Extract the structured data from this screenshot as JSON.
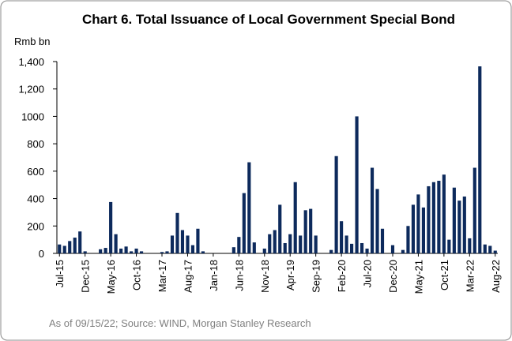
{
  "chart_data": {
    "type": "bar",
    "title": "Chart 6. Total Issuance of Local Government Special Bond",
    "y_label": "Rmb bn",
    "source": "As of 09/15/22; Source: WIND, Morgan Stanley Research",
    "color": "#0d2a5c",
    "categories": [
      "Jul-15",
      null,
      null,
      null,
      null,
      "Dec-15",
      null,
      null,
      null,
      null,
      "May-16",
      null,
      null,
      null,
      null,
      "Oct-16",
      null,
      null,
      null,
      null,
      "Mar-17",
      null,
      null,
      null,
      null,
      "Aug-17",
      null,
      null,
      null,
      null,
      "Jan-18",
      null,
      null,
      null,
      null,
      "Jun-18",
      null,
      null,
      null,
      null,
      "Nov-18",
      null,
      null,
      null,
      null,
      "Apr-19",
      null,
      null,
      null,
      null,
      "Sep-19",
      null,
      null,
      null,
      null,
      "Feb-20",
      null,
      null,
      null,
      null,
      "Jul-20",
      null,
      null,
      null,
      null,
      "Dec-20",
      null,
      null,
      null,
      null,
      "May-21",
      null,
      null,
      null,
      null,
      "Oct-21",
      null,
      null,
      null,
      null,
      "Mar-22",
      null,
      null,
      null,
      null,
      "Aug-22"
    ],
    "values": [
      65,
      55,
      90,
      115,
      160,
      15,
      0,
      0,
      30,
      40,
      375,
      140,
      35,
      50,
      15,
      35,
      15,
      0,
      0,
      0,
      10,
      15,
      130,
      295,
      170,
      130,
      60,
      180,
      15,
      0,
      0,
      0,
      0,
      0,
      45,
      120,
      440,
      665,
      80,
      0,
      35,
      140,
      170,
      355,
      75,
      140,
      520,
      130,
      315,
      325,
      130,
      0,
      0,
      25,
      710,
      235,
      130,
      70,
      1000,
      75,
      35,
      625,
      470,
      180,
      0,
      60,
      0,
      25,
      200,
      355,
      430,
      335,
      490,
      520,
      530,
      575,
      100,
      480,
      385,
      415,
      110,
      625,
      1365,
      65,
      55,
      20
    ],
    "ylim": [
      0,
      1400
    ],
    "yticks": [
      0,
      200,
      400,
      600,
      800,
      1000,
      {
        "value": 1200,
        "label": "1,200"
      },
      {
        "value": 1400,
        "label": "1,400"
      }
    ]
  }
}
